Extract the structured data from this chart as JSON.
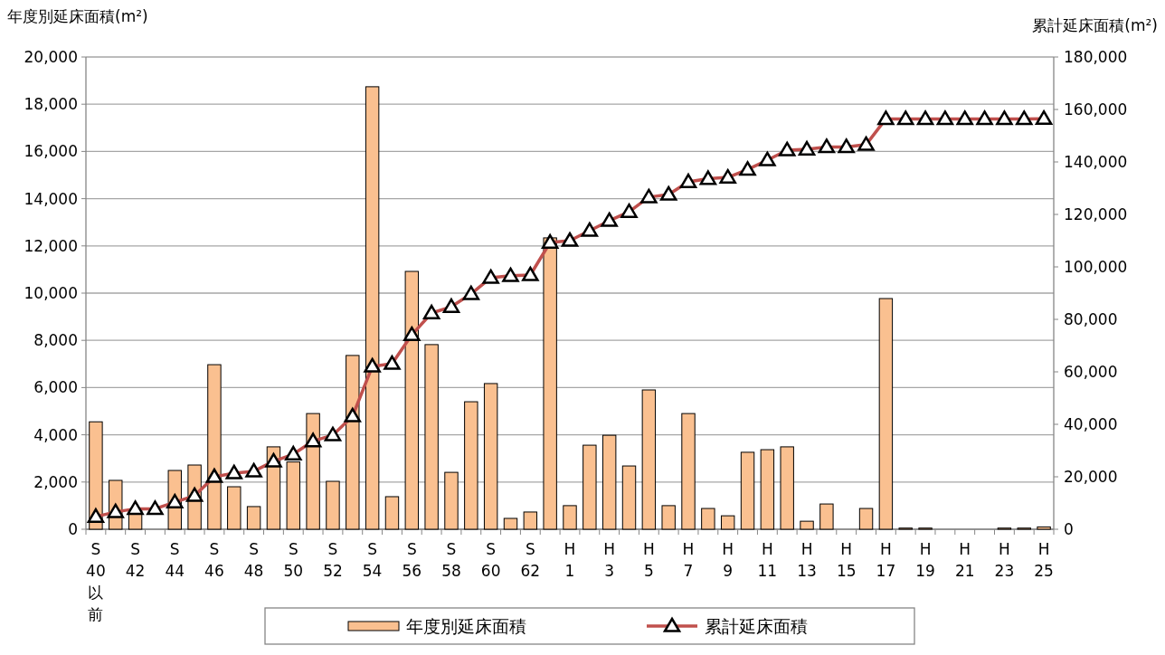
{
  "chart_data": {
    "type": "bar",
    "ylabel": "年度別延床面積(m²)",
    "y2label": "累計延床面積(m²)",
    "categories": [
      "S40以前",
      null,
      "S42",
      null,
      "S44",
      null,
      "S46",
      null,
      "S48",
      null,
      "S50",
      null,
      "S52",
      null,
      "S54",
      null,
      "S56",
      null,
      "S58",
      null,
      "S60",
      null,
      "S62",
      null,
      "H1",
      null,
      "H3",
      null,
      "H5",
      null,
      "H7",
      null,
      "H9",
      null,
      "H11",
      null,
      "H13",
      null,
      "H15",
      null,
      "H17",
      null,
      "H19",
      null,
      "H21",
      null,
      "H23",
      null,
      "H25"
    ],
    "series": [
      {
        "name": "年度別延床面積",
        "color": "#fac090",
        "values": [
          4550,
          2070,
          800,
          0,
          2490,
          2720,
          6970,
          1800,
          960,
          3490,
          2850,
          4900,
          2030,
          7360,
          18740,
          1380,
          10920,
          7820,
          2410,
          5400,
          6170,
          460,
          730,
          12340,
          1000,
          3560,
          3980,
          2680,
          5900,
          1000,
          4900,
          880,
          570,
          3260,
          3370,
          3490,
          340,
          1070,
          0,
          880,
          9770,
          50,
          50,
          0,
          0,
          0,
          50,
          50,
          100
        ]
      },
      {
        "name": "累計延床面積",
        "type": "line",
        "axis": "y2",
        "color": "#c0504d",
        "marker": "triangle",
        "values": [
          4800,
          6600,
          7800,
          7800,
          10300,
          12800,
          20000,
          21400,
          22100,
          25900,
          28600,
          33600,
          35900,
          43100,
          62100,
          63100,
          74100,
          82400,
          84800,
          89700,
          95900,
          96600,
          96900,
          109300,
          110000,
          113800,
          117600,
          121000,
          126600,
          127600,
          132400,
          133600,
          134100,
          137100,
          140700,
          144500,
          144800,
          145700,
          145700,
          146600,
          156400,
          156400,
          156400,
          156400,
          156400,
          156400,
          156400,
          156400,
          156500
        ]
      }
    ],
    "ylim": [
      0,
      20000
    ],
    "yticks": [
      0,
      {
        "value": 2000,
        "label": "2,000"
      },
      {
        "value": 4000,
        "label": "4,000"
      },
      {
        "value": 6000,
        "label": "6,000"
      },
      {
        "value": 8000,
        "label": "8,000"
      },
      {
        "value": 10000,
        "label": "10,000"
      },
      {
        "value": 12000,
        "label": "12,000"
      },
      {
        "value": 14000,
        "label": "14,000"
      },
      {
        "value": 16000,
        "label": "16,000"
      },
      {
        "value": 18000,
        "label": "18,000"
      },
      {
        "value": 20000,
        "label": "20,000"
      }
    ],
    "y2lim": [
      0,
      180000
    ],
    "y2ticks": [
      0,
      {
        "value": 20000,
        "label": "20,000"
      },
      {
        "value": 40000,
        "label": "40,000"
      },
      {
        "value": 60000,
        "label": "60,000"
      },
      {
        "value": 80000,
        "label": "80,000"
      },
      {
        "value": 100000,
        "label": "100,000"
      },
      {
        "value": 120000,
        "label": "120,000"
      },
      {
        "value": 140000,
        "label": "140,000"
      },
      {
        "value": 160000,
        "label": "160,000"
      },
      {
        "value": 180000,
        "label": "180,000"
      }
    ],
    "grid": "y",
    "legend": "bottom"
  }
}
